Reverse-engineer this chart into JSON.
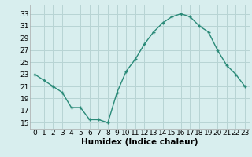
{
  "x": [
    0,
    1,
    2,
    3,
    4,
    5,
    6,
    7,
    8,
    9,
    10,
    11,
    12,
    13,
    14,
    15,
    16,
    17,
    18,
    19,
    20,
    21,
    22,
    23
  ],
  "y": [
    23,
    22,
    21,
    20,
    17.5,
    17.5,
    15.5,
    15.5,
    15,
    20,
    23.5,
    25.5,
    28,
    30,
    31.5,
    32.5,
    33,
    32.5,
    31,
    30,
    27,
    24.5,
    23,
    21
  ],
  "line_color": "#2a8a78",
  "marker_color": "#2a8a78",
  "bg_color": "#d8eeee",
  "grid_color": "#b8d4d4",
  "xlabel": "Humidex (Indice chaleur)",
  "xlim": [
    -0.5,
    23.5
  ],
  "ylim": [
    14,
    34.5
  ],
  "yticks": [
    15,
    17,
    19,
    21,
    23,
    25,
    27,
    29,
    31,
    33
  ],
  "xticks": [
    0,
    1,
    2,
    3,
    4,
    5,
    6,
    7,
    8,
    9,
    10,
    11,
    12,
    13,
    14,
    15,
    16,
    17,
    18,
    19,
    20,
    21,
    22,
    23
  ],
  "tick_fontsize": 6.5,
  "label_fontsize": 7.5
}
